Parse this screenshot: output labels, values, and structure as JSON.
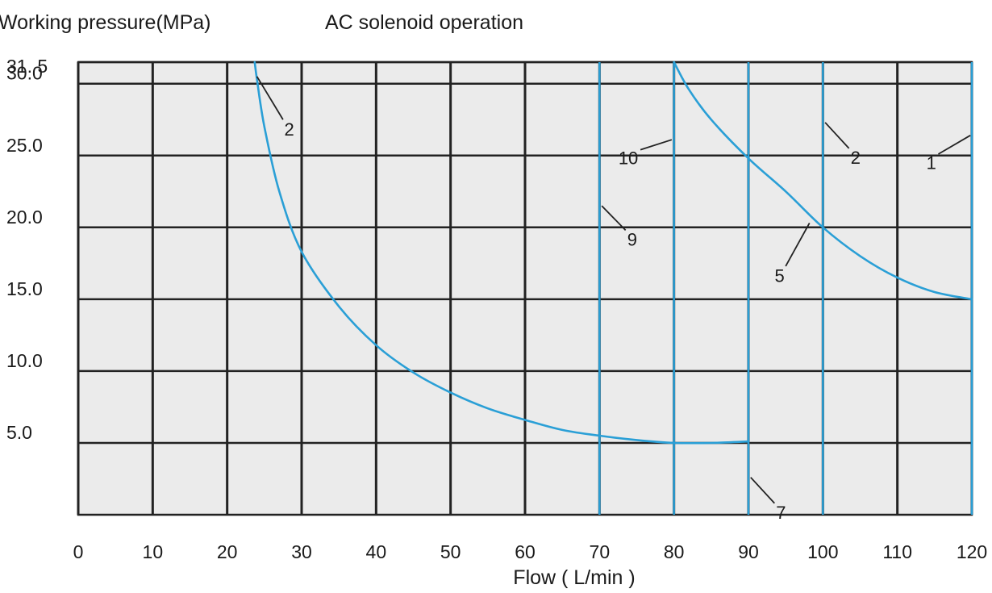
{
  "chart_data": {
    "type": "line",
    "title": "AC solenoid operation",
    "ylabel": "Working pressure(MPa)",
    "xlabel": "Flow ( L/min )",
    "xlim": [
      0,
      120
    ],
    "ylim": [
      0,
      31.5
    ],
    "x_ticks": [
      "0",
      "10",
      "20",
      "30",
      "40",
      "50",
      "60",
      "70",
      "80",
      "90",
      "100",
      "110",
      "120"
    ],
    "y_ticks": [
      {
        "value": 31.5,
        "label": "31. 5"
      },
      {
        "value": 30,
        "label": "30.0"
      },
      {
        "value": 25,
        "label": "25.0"
      },
      {
        "value": 20,
        "label": "20.0"
      },
      {
        "value": 15,
        "label": "15.0"
      },
      {
        "value": 10,
        "label": "10.0"
      },
      {
        "value": 5,
        "label": "5.0"
      }
    ],
    "grid": true,
    "series": [
      {
        "id": "curve-2",
        "color": "#2a9fd6",
        "points": [
          [
            23.7,
            31.5
          ],
          [
            24.0,
            30.3
          ],
          [
            25.0,
            27.0
          ],
          [
            27.0,
            22.5
          ],
          [
            30.0,
            18.3
          ],
          [
            35.0,
            14.5
          ],
          [
            40.0,
            11.8
          ],
          [
            45.0,
            9.9
          ],
          [
            50.0,
            8.5
          ],
          [
            55.0,
            7.4
          ],
          [
            60.0,
            6.6
          ],
          [
            65.0,
            5.9
          ],
          [
            70.0,
            5.5
          ],
          [
            75.0,
            5.2
          ],
          [
            80.0,
            5.0
          ],
          [
            85.0,
            5.0
          ],
          [
            90.0,
            5.1
          ]
        ]
      },
      {
        "id": "curve-5",
        "color": "#2a9fd6",
        "points": [
          [
            80.0,
            31.5
          ],
          [
            82.0,
            29.6
          ],
          [
            85.0,
            27.5
          ],
          [
            90.0,
            24.8
          ],
          [
            95.0,
            22.5
          ],
          [
            100.0,
            20.0
          ],
          [
            105.0,
            18.0
          ],
          [
            110.0,
            16.5
          ],
          [
            115.0,
            15.5
          ],
          [
            120.0,
            15.0
          ]
        ]
      }
    ],
    "vertical_lines": [
      {
        "x": 70,
        "color": "#2a9fd6"
      },
      {
        "x": 80,
        "color": "#2a9fd6"
      },
      {
        "x": 90,
        "color": "#2a9fd6"
      },
      {
        "x": 100,
        "color": "#2a9fd6"
      },
      {
        "x": 120,
        "color": "#2a9fd6"
      }
    ],
    "annotations": [
      {
        "label": "2",
        "leader_from": [
          24.0,
          30.5
        ],
        "leader_to": [
          27.5,
          27.5
        ]
      },
      {
        "label": "10",
        "leader_from": [
          79.7,
          26.1
        ],
        "leader_to": [
          75.5,
          25.4
        ]
      },
      {
        "label": "2",
        "leader_from": [
          100.3,
          27.3
        ],
        "leader_to": [
          103.5,
          25.5
        ]
      },
      {
        "label": "1",
        "leader_from": [
          119.8,
          26.4
        ],
        "leader_to": [
          115.5,
          25.1
        ]
      },
      {
        "label": "9",
        "leader_from": [
          70.3,
          21.5
        ],
        "leader_to": [
          73.5,
          19.8
        ]
      },
      {
        "label": "5",
        "leader_from": [
          98.2,
          20.3
        ],
        "leader_to": [
          95.0,
          17.3
        ]
      },
      {
        "label": "7",
        "leader_from": [
          90.3,
          2.6
        ],
        "leader_to": [
          93.5,
          0.8
        ]
      }
    ]
  }
}
